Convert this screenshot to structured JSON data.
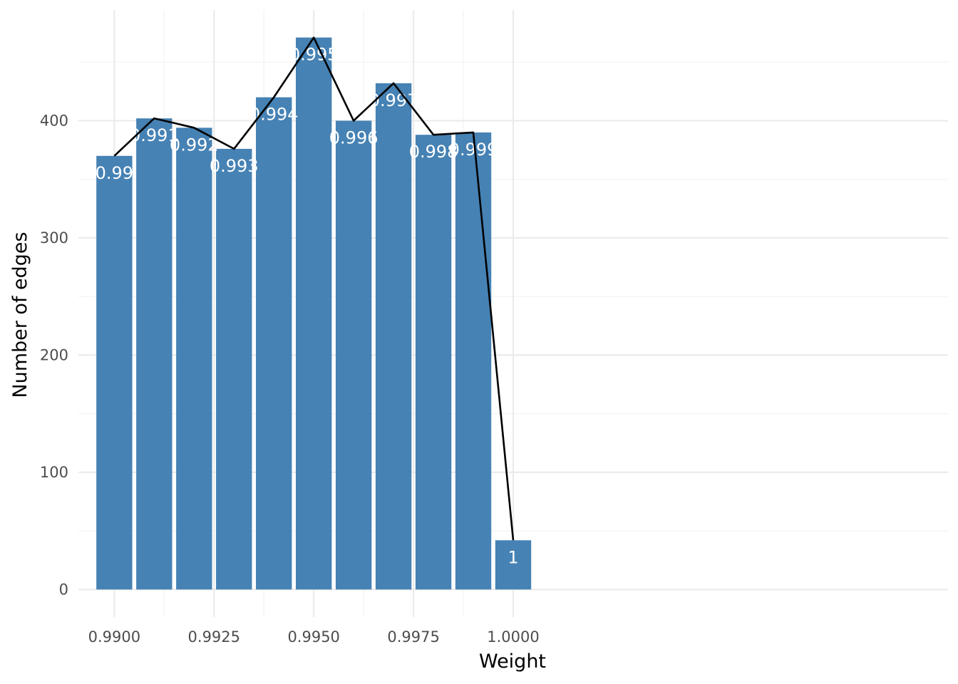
{
  "chart_data": {
    "type": "bar",
    "title": "",
    "xlabel": "Weight",
    "ylabel": "Number of edges",
    "x": [
      0.99,
      0.991,
      0.992,
      0.993,
      0.994,
      0.995,
      0.996,
      0.997,
      0.998,
      0.999,
      1.0
    ],
    "values": [
      370,
      402,
      394,
      376,
      420,
      471,
      400,
      432,
      388,
      390,
      42
    ],
    "bar_labels": [
      "0.99",
      "0.991",
      "0.992",
      "0.993",
      "0.994",
      "0.995",
      "0.996",
      "0.997",
      "0.998",
      "0.999",
      "1"
    ],
    "line_values": [
      370,
      402,
      394,
      376,
      420,
      471,
      400,
      432,
      388,
      390,
      42
    ],
    "xlim": [
      0.9891,
      1.0109
    ],
    "ylim": [
      -23.5,
      494.5
    ],
    "x_ticks": [
      0.99,
      0.9925,
      0.995,
      0.9975,
      1.0
    ],
    "x_tick_labels": [
      "0.9900",
      "0.9925",
      "0.9950",
      "0.9975",
      "1.0000"
    ],
    "y_ticks": [
      0,
      100,
      200,
      300,
      400
    ],
    "y_tick_labels": [
      "0",
      "100",
      "200",
      "300",
      "400"
    ],
    "grid": true,
    "legend": false,
    "colors": {
      "bar": "#4682b4",
      "line": "#000000",
      "bar_label": "#ffffff"
    }
  }
}
